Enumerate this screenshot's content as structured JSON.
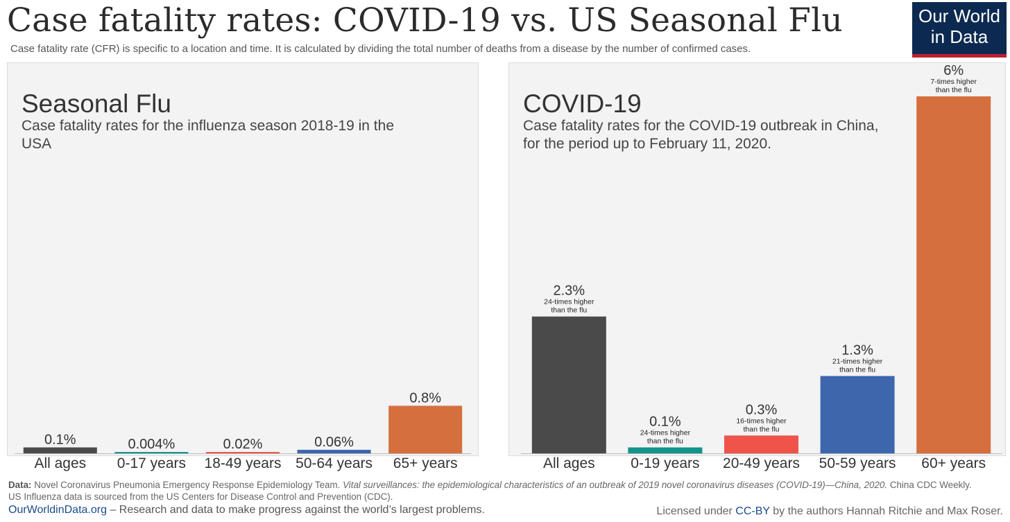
{
  "header": {
    "title": "Case fatality rates: COVID-19 vs. US Seasonal Flu",
    "subtitle": "Case fatality rate (CFR) is specific to a location and time. It is calculated by dividing the total number of deaths from a disease by the number of confirmed cases.",
    "logo_line1": "Our World",
    "logo_line2": "in Data"
  },
  "chart_data": [
    {
      "type": "bar",
      "title": "Seasonal Flu",
      "subtitle": "Case fatality rates for the influenza season 2018-19 in the USA",
      "categories": [
        "All ages",
        "0-17 years",
        "18-49 years",
        "50-64 years",
        "65+ years"
      ],
      "values": [
        0.1,
        0.004,
        0.02,
        0.06,
        0.8
      ],
      "value_labels": [
        "0.1%",
        "0.004%",
        "0.02%",
        "0.06%",
        "0.8%"
      ],
      "colors": [
        "#4a4a4a",
        "#12938b",
        "#f0534a",
        "#3d66ad",
        "#d56f3e"
      ],
      "ylim": [
        0,
        6
      ],
      "grid": false
    },
    {
      "type": "bar",
      "title": "COVID-19",
      "subtitle_lines": [
        "Case fatality rates for the COVID-19 outbreak in China,",
        "for the period  up to February 11, 2020."
      ],
      "categories": [
        "All ages",
        "0-19 years",
        "20-49 years",
        "50-59 years",
        "60+ years"
      ],
      "values": [
        2.3,
        0.1,
        0.3,
        1.3,
        6
      ],
      "value_labels": [
        "2.3%",
        "0.1%",
        "0.3%",
        "1.3%",
        "6%"
      ],
      "annotations": [
        [
          "24-times higher",
          "than the flu"
        ],
        [
          "24-times higher",
          "than the flu"
        ],
        [
          "16-times higher",
          "than the flu"
        ],
        [
          "21-times higher",
          "than the flu"
        ],
        [
          "7-times higher",
          "than the flu"
        ]
      ],
      "colors": [
        "#4a4a4a",
        "#12938b",
        "#f0534a",
        "#3d66ad",
        "#d56f3e"
      ],
      "ylim": [
        0,
        6
      ],
      "grid": false
    }
  ],
  "footer": {
    "data_label": "Data:",
    "data_source": "Novel Coronavirus Pneumonia Emergency Response Epidemiology Team.",
    "data_title": "Vital surveillances: the epidemiological characteristics of an outbreak of 2019 novel coronavirus diseases (COVID-19)—China, 2020.",
    "data_journal": "China CDC Weekly.",
    "data_line2": "US Influenza data is sourced from the US Centers for Disease Control and Prevention (CDC).",
    "owid_link": "OurWorldinData.org",
    "owid_tagline": "– Research and data to make progress against the world’s largest problems.",
    "license_prefix": "Licensed under",
    "license_link": "CC-BY",
    "license_suffix": "by the authors Hannah Ritchie and Max Roser."
  }
}
